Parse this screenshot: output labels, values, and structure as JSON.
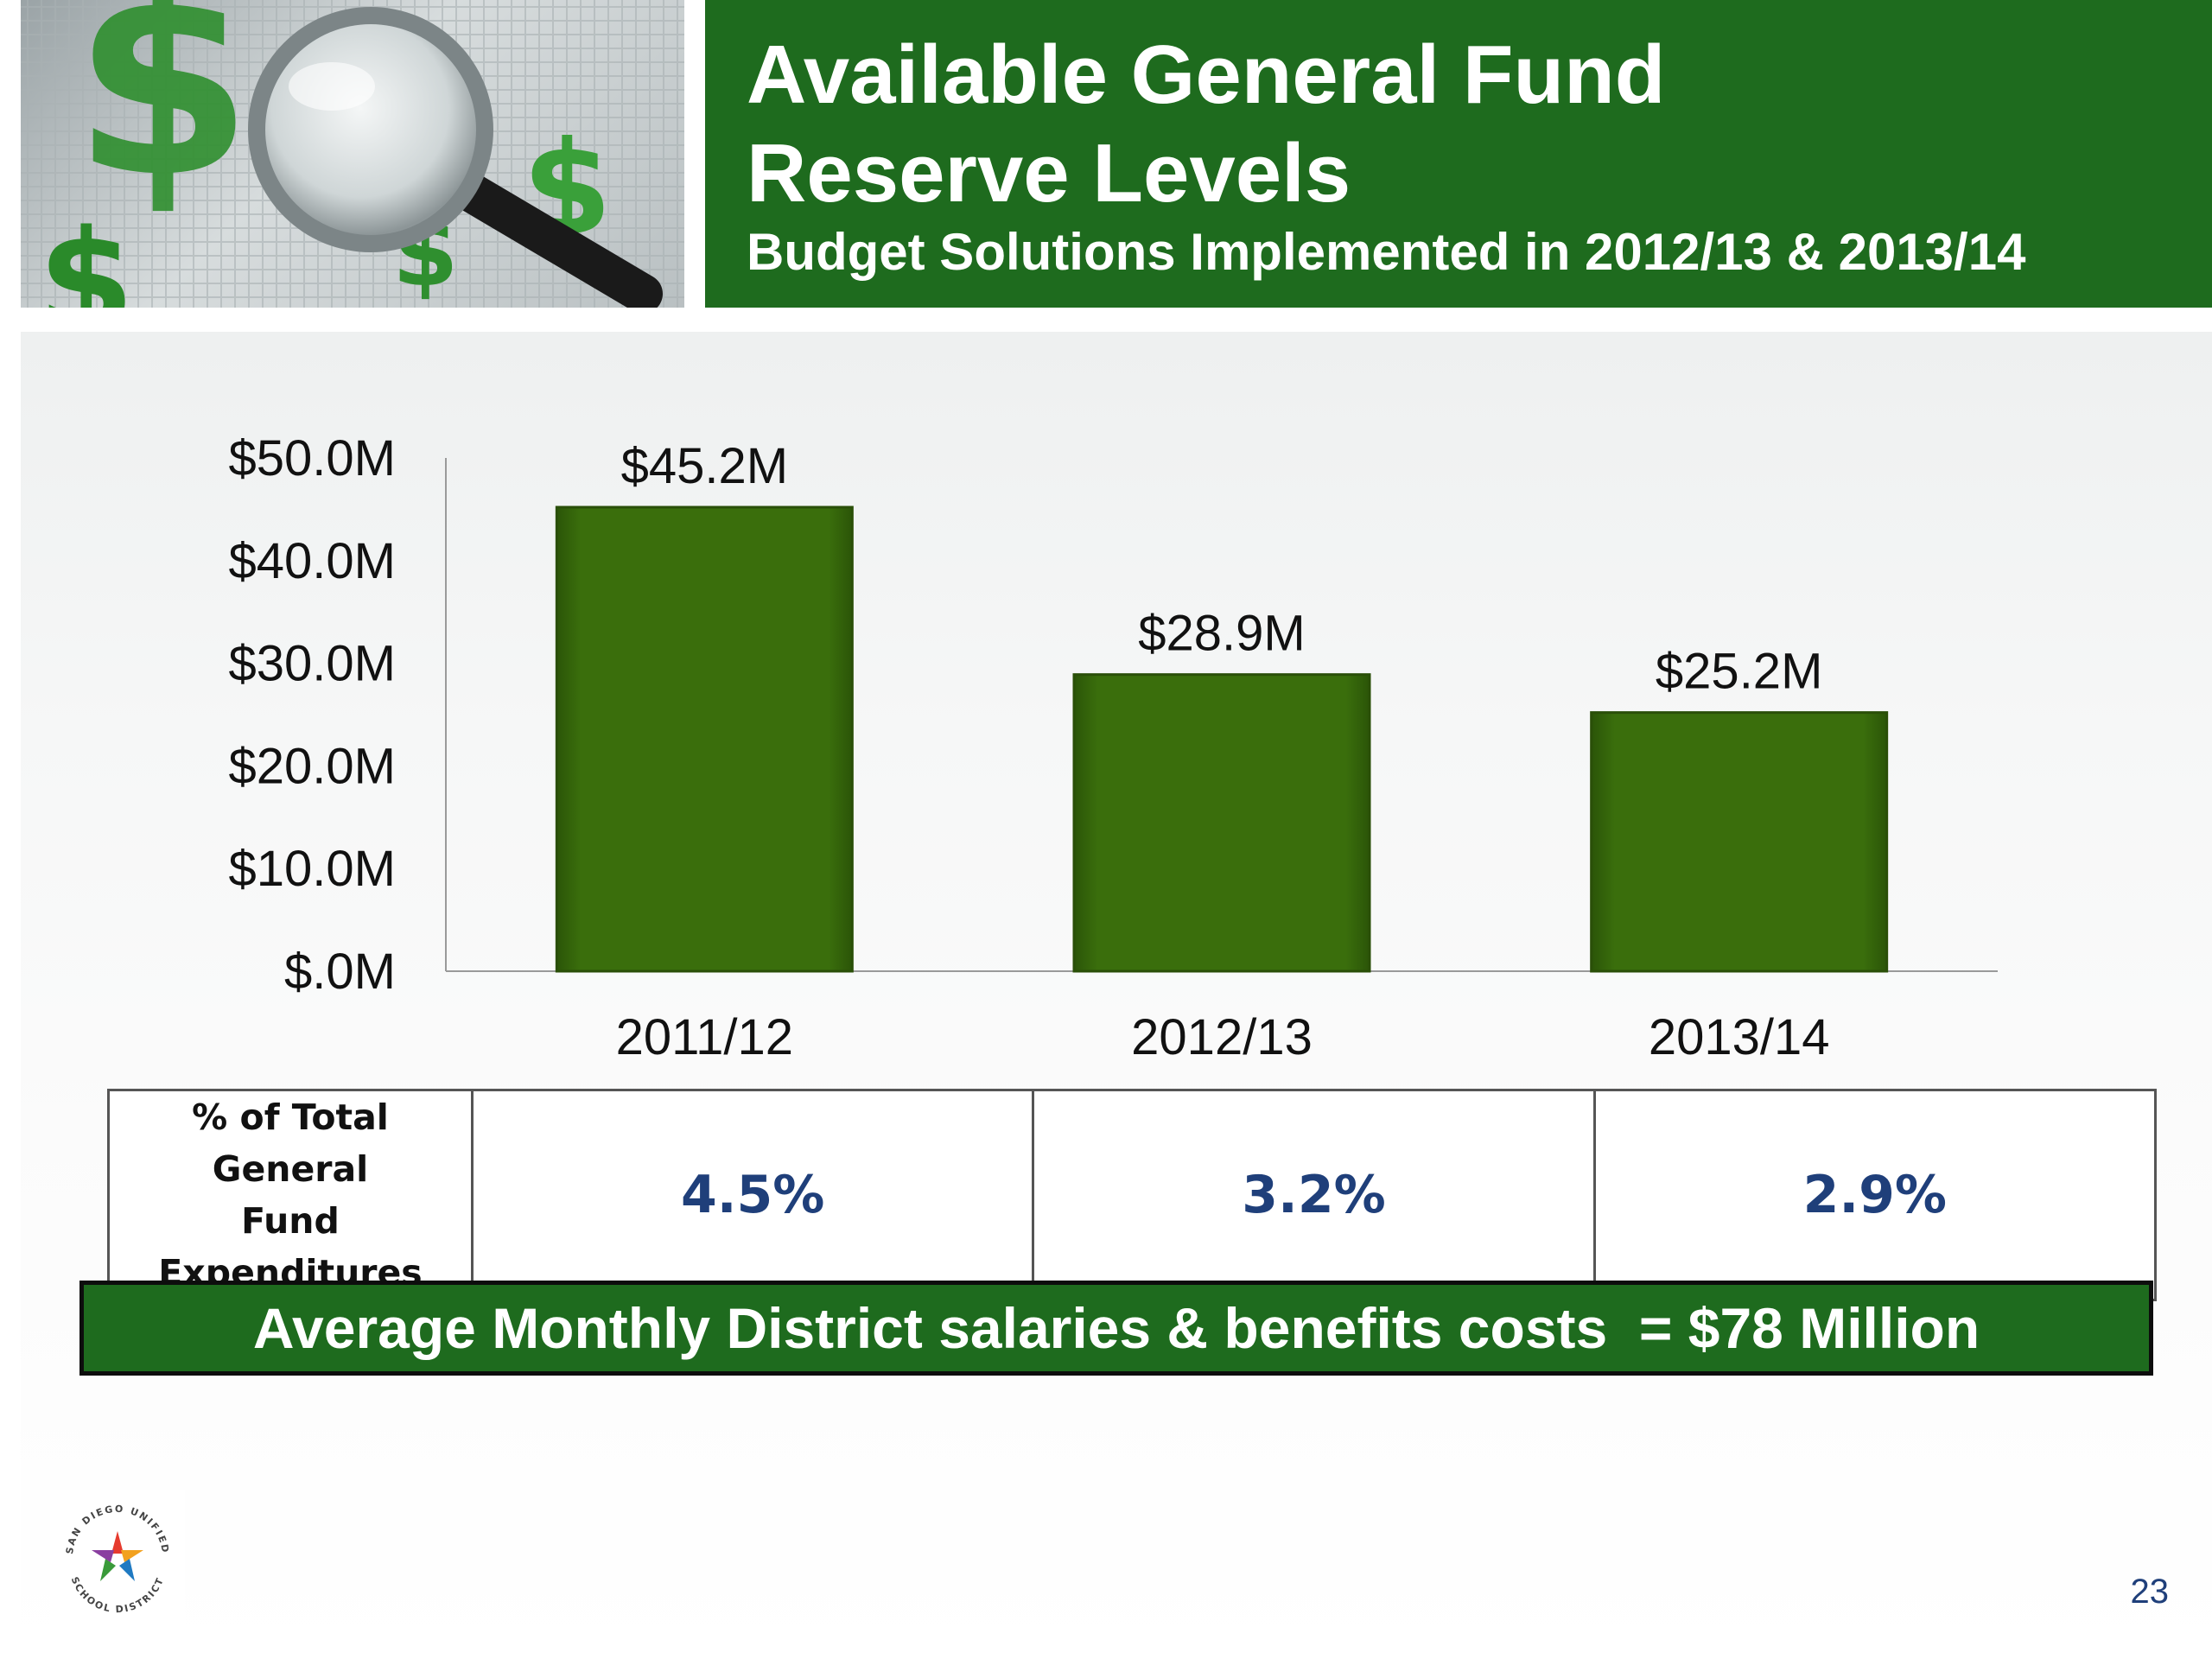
{
  "header": {
    "title": "Available General Fund\nReserve Levels",
    "subtitle": "Budget Solutions Implemented in 2012/13 & 2013/14"
  },
  "chart_data": {
    "type": "bar",
    "categories": [
      "2011/12",
      "2012/13",
      "2013/14"
    ],
    "values": [
      45.2,
      28.9,
      25.2
    ],
    "data_labels": [
      "$45.2M",
      "$28.9M",
      "$25.2M"
    ],
    "yticks": [
      "$.0M",
      "$10.0M",
      "$20.0M",
      "$30.0M",
      "$40.0M",
      "$50.0M"
    ],
    "ylim": [
      0,
      50
    ],
    "title": "",
    "xlabel": "",
    "ylabel": "",
    "grid": false,
    "bar_color": "#3a6e0c"
  },
  "table": {
    "label": "% of Total General\nFund Expenditures",
    "values": [
      "4.5%",
      "3.2%",
      "2.9%"
    ]
  },
  "banner": {
    "text": "Average Monthly District salaries & benefits costs  = $78 Million"
  },
  "logo": {
    "top_text": "SAN DIEGO UNIFIED",
    "bottom_text": "SCHOOL DISTRICT"
  },
  "page_number": "23",
  "colors": {
    "header_green": "#1e6b1e",
    "bar_green": "#3a6e0c",
    "value_blue": "#1f3f7a"
  }
}
